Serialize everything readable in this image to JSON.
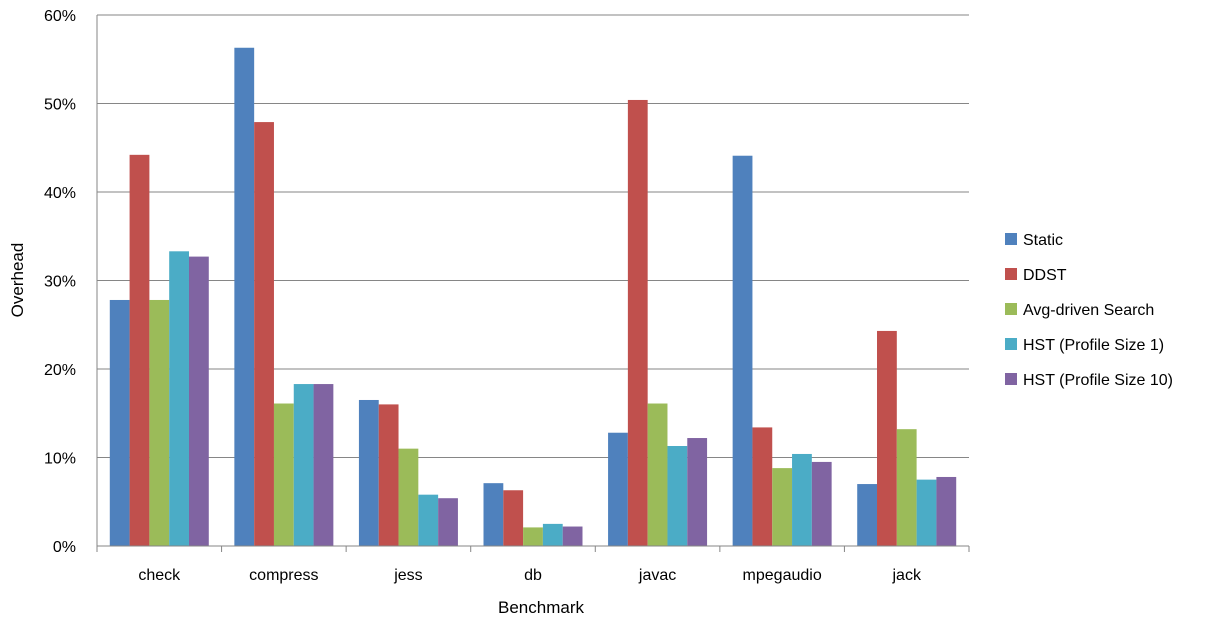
{
  "chart_data": {
    "type": "bar",
    "xlabel": "Benchmark",
    "ylabel": "Overhead",
    "ylim": [
      0,
      60
    ],
    "yticks": [
      "0%",
      "10%",
      "20%",
      "30%",
      "40%",
      "50%",
      "60%"
    ],
    "grid": true,
    "legend_position": "right",
    "categories": [
      "check",
      "compress",
      "jess",
      "db",
      "javac",
      "mpegaudio",
      "jack"
    ],
    "series": [
      {
        "name": "Static",
        "color": "#4F81BD",
        "values": [
          27.8,
          56.3,
          16.5,
          7.1,
          12.8,
          44.1,
          7.0
        ]
      },
      {
        "name": "DDST",
        "color": "#C0504D",
        "values": [
          44.2,
          47.9,
          16.0,
          6.3,
          50.4,
          13.4,
          24.3
        ]
      },
      {
        "name": "Avg-driven Search",
        "color": "#9BBB59",
        "values": [
          27.8,
          16.1,
          11.0,
          2.1,
          16.1,
          8.8,
          13.2
        ]
      },
      {
        "name": "HST (Profile Size 1)",
        "color": "#4BACC6",
        "values": [
          33.3,
          18.3,
          5.8,
          2.5,
          11.3,
          10.4,
          7.5
        ]
      },
      {
        "name": "HST (Profile Size 10)",
        "color": "#8064A2",
        "values": [
          32.7,
          18.3,
          5.4,
          2.2,
          12.2,
          9.5,
          7.8
        ]
      }
    ]
  }
}
